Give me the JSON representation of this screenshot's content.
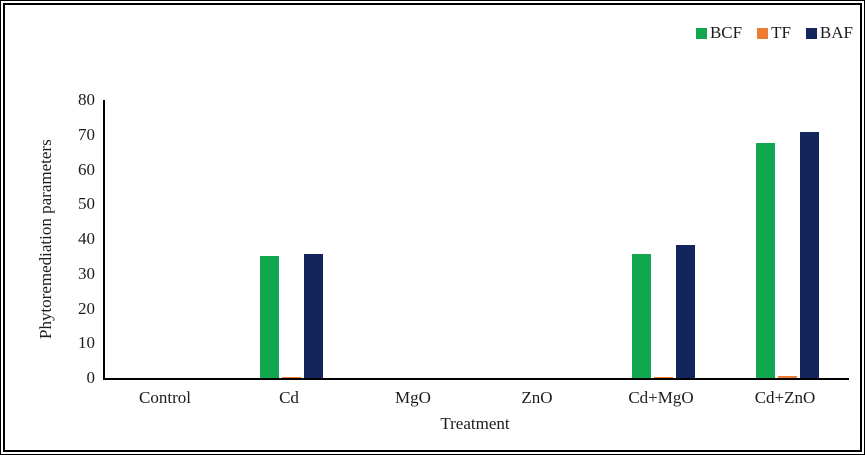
{
  "figure": {
    "y_axis_title": "Phytoremediation parameters",
    "x_axis_title": "Treatment"
  },
  "chart_data": {
    "type": "bar",
    "title": "",
    "xlabel": "Treatment",
    "ylabel": "Phytoremediation parameters",
    "categories": [
      "Control",
      "Cd",
      "MgO",
      "ZnO",
      "Cd+MgO",
      "Cd+ZnO"
    ],
    "series": [
      {
        "name": "BCF",
        "color": "#10A74F",
        "values": [
          0,
          35.1,
          0,
          0,
          35.8,
          67.5
        ]
      },
      {
        "name": "TF",
        "color": "#ED7D31",
        "values": [
          0,
          0.4,
          0,
          0,
          0.4,
          0.5
        ]
      },
      {
        "name": "BAF",
        "color": "#12265C",
        "values": [
          0,
          35.6,
          0,
          0,
          38.2,
          70.9
        ]
      }
    ],
    "ylim": [
      0,
      80
    ],
    "yticks": [
      0,
      10,
      20,
      30,
      40,
      50,
      60,
      70,
      80
    ],
    "grid": false,
    "legend_position": "top-right"
  }
}
